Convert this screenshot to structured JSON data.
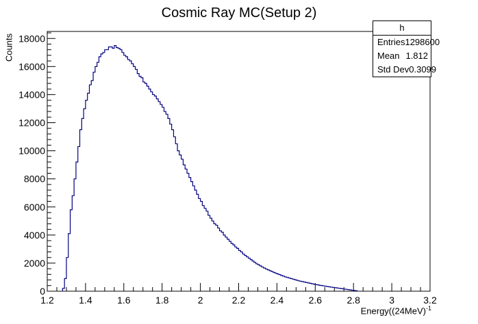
{
  "chart_data": {
    "type": "histogram",
    "title": "Cosmic Ray MC(Setup 2)",
    "xlabel": "Energy((24MeV)",
    "xlabel_sup": "-1",
    "ylabel": "Counts",
    "xlim": [
      1.2,
      3.2
    ],
    "ylim": [
      0,
      18500
    ],
    "x_ticks": [
      "1.2",
      "1.4",
      "1.6",
      "1.8",
      "2",
      "2.2",
      "2.4",
      "2.6",
      "2.8",
      "3",
      "3.2"
    ],
    "y_ticks": [
      "0",
      "2000",
      "4000",
      "6000",
      "8000",
      "10000",
      "12000",
      "14000",
      "16000",
      "18000"
    ],
    "bin_width": 0.01,
    "line_color": "#000080",
    "series": [
      {
        "x_start": 1.28,
        "values": [
          200,
          900,
          2400,
          4100,
          5800,
          6800,
          8000,
          9200,
          10300,
          11500,
          12300,
          13000,
          13600,
          14100,
          14700,
          15000,
          15600,
          16000,
          16300,
          16700,
          16900,
          17000,
          17200,
          17200,
          17400,
          17400,
          17300,
          17500,
          17350,
          17300,
          17200,
          17000,
          16800,
          16700,
          16500,
          16400,
          16200,
          16000,
          15800,
          15500,
          15300,
          15200,
          14900,
          14800,
          14600,
          14400,
          14200,
          14000,
          13900,
          13700,
          13500,
          13300,
          13100,
          12800,
          12600,
          12300,
          11900,
          11500,
          11000,
          10500,
          10000,
          9700,
          9400,
          9000,
          8700,
          8400,
          8100,
          7800,
          7500,
          7200,
          6900,
          6600,
          6400,
          6100,
          5900,
          5700,
          5400,
          5200,
          5000,
          4800,
          4700,
          4500,
          4300,
          4200,
          4000,
          3850,
          3700,
          3550,
          3400,
          3300,
          3150,
          3050,
          2900,
          2800,
          2650,
          2550,
          2450,
          2350,
          2250,
          2150,
          2050,
          1950,
          1880,
          1800,
          1720,
          1650,
          1580,
          1520,
          1460,
          1400,
          1340,
          1280,
          1230,
          1180,
          1120,
          1070,
          1020,
          980,
          940,
          900,
          860,
          820,
          780,
          740,
          710,
          680,
          650,
          620,
          590,
          560,
          530,
          500,
          470,
          450,
          420,
          400,
          380,
          355,
          330,
          310,
          290,
          270,
          250,
          230,
          210,
          190,
          170,
          150,
          130,
          110,
          90,
          70,
          50,
          30
        ]
      }
    ]
  },
  "stats": {
    "name": "h",
    "rows": [
      {
        "label": "Entries",
        "value": "1298600"
      },
      {
        "label": "Mean",
        "value": "1.812"
      },
      {
        "label": "Std Dev",
        "value": "0.3099"
      }
    ]
  }
}
